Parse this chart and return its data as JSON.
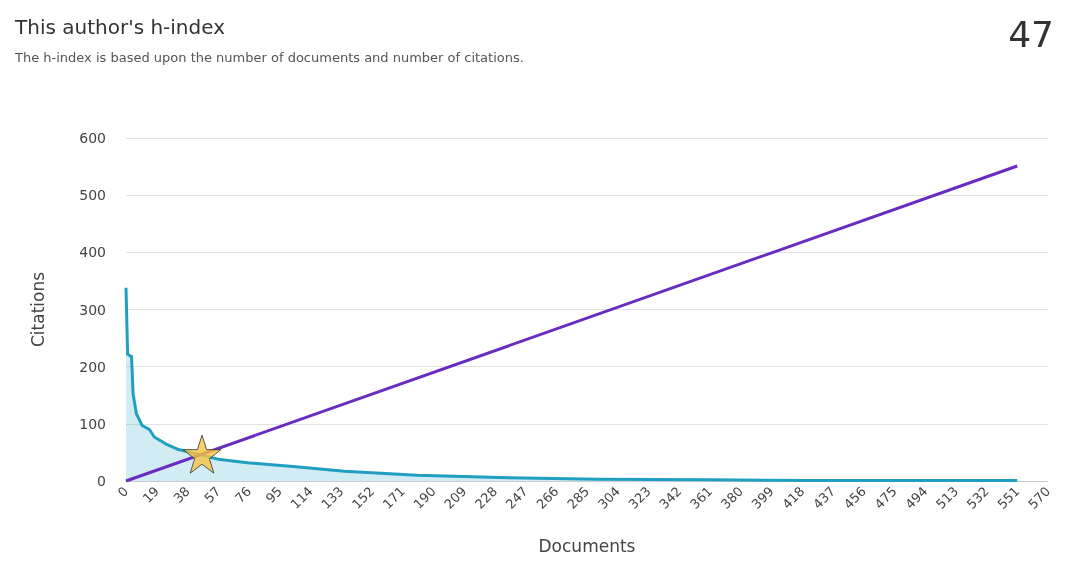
{
  "chart_data": {
    "type": "line",
    "title": "This author's h-index",
    "subtitle": "The h-index is based upon the number of documents and number of citations.",
    "annotations": [
      "47"
    ],
    "xlabel": "Documents",
    "ylabel": "Citations",
    "xlim": [
      0,
      570
    ],
    "xticks": [
      0,
      19,
      38,
      57,
      76,
      95,
      114,
      133,
      152,
      171,
      190,
      209,
      228,
      247,
      266,
      285,
      304,
      323,
      342,
      361,
      380,
      399,
      418,
      437,
      456,
      475,
      494,
      513,
      532,
      551,
      570
    ],
    "ylim": [
      0,
      600
    ],
    "yticks": [
      0,
      100,
      200,
      300,
      400,
      500,
      600
    ],
    "grid": "y",
    "series": [
      {
        "type": "area",
        "color": "#1fa0c2",
        "x": [
          0,
          1,
          2,
          3.4,
          4.4,
          6.4,
          10,
          14.5,
          17.5,
          24.5,
          32.5,
          44.6,
          57,
          75,
          105,
          135,
          180,
          231,
          292,
          361,
          421,
          551
        ],
        "values": [
          338,
          222,
          220,
          218,
          152,
          118,
          97,
          90,
          77,
          65,
          55,
          47,
          38,
          32,
          25,
          17,
          10,
          6,
          3,
          2,
          1,
          1
        ]
      },
      {
        "type": "line",
        "color": "#6a2bc2",
        "x": [
          0,
          551
        ],
        "values": [
          0,
          551
        ]
      },
      {
        "type": "scatter",
        "marker": "star",
        "color": "#f6c441",
        "x": [
          47
        ],
        "values": [
          47
        ]
      }
    ]
  }
}
